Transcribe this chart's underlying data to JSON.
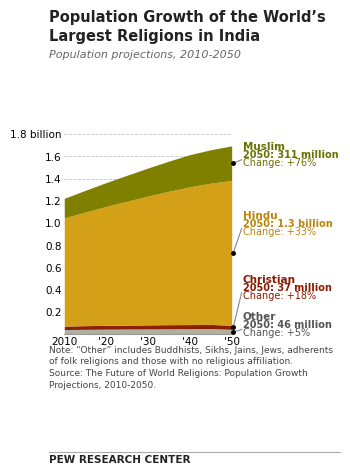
{
  "title": "Population Growth of the World’s\nLargest Religions in India",
  "subtitle": "Population projections, 2010-2050",
  "years": [
    2010,
    2015,
    2020,
    2025,
    2030,
    2035,
    2040,
    2045,
    2050
  ],
  "other": [
    0.044,
    0.046,
    0.048,
    0.049,
    0.05,
    0.051,
    0.052,
    0.053,
    0.046
  ],
  "christian": [
    0.031,
    0.033,
    0.034,
    0.035,
    0.036,
    0.037,
    0.037,
    0.037,
    0.037
  ],
  "hindu": [
    0.972,
    1.02,
    1.068,
    1.113,
    1.157,
    1.198,
    1.237,
    1.269,
    1.3
  ],
  "muslim": [
    0.176,
    0.195,
    0.214,
    0.233,
    0.252,
    0.271,
    0.289,
    0.3,
    0.311
  ],
  "colors": {
    "other": "#b0b0a0",
    "christian": "#8b2000",
    "hindu": "#d4a017",
    "muslim": "#808000"
  },
  "ylim": [
    0,
    1.9
  ],
  "yticks": [
    0,
    0.2,
    0.4,
    0.6,
    0.8,
    1.0,
    1.2,
    1.4,
    1.6,
    1.8
  ],
  "ytick_labels": [
    "",
    "0.2",
    "0.4",
    "0.6",
    "0.8",
    "1.0",
    "1.2",
    "1.4",
    "1.6",
    "1.8 billion"
  ],
  "label_fig_y": {
    "Muslim": 0.655,
    "Hindu": 0.515,
    "Christian": 0.385,
    "Other": 0.31
  },
  "label_texts": {
    "Muslim": [
      "Muslim",
      "2050: 311 million",
      "Change: +76%",
      "#6b7000"
    ],
    "Hindu": [
      "Hindu",
      "2050: 1.3 billion",
      "Change: +33%",
      "#b8860b"
    ],
    "Christian": [
      "Christian",
      "2050: 37 million",
      "Change: +18%",
      "#8b1a00"
    ],
    "Other": [
      "Other",
      "2050: 46 million",
      "Change: +5%",
      "#555555"
    ]
  },
  "note": "Note: “Other” includes Buddhists, Sikhs, Jains, Jews, adherents\nof folk religions and those with no religious affiliation.\nSource: The Future of World Religions: Population Growth\nProjections, 2010-2050.",
  "footer": "PEW RESEARCH CENTER"
}
